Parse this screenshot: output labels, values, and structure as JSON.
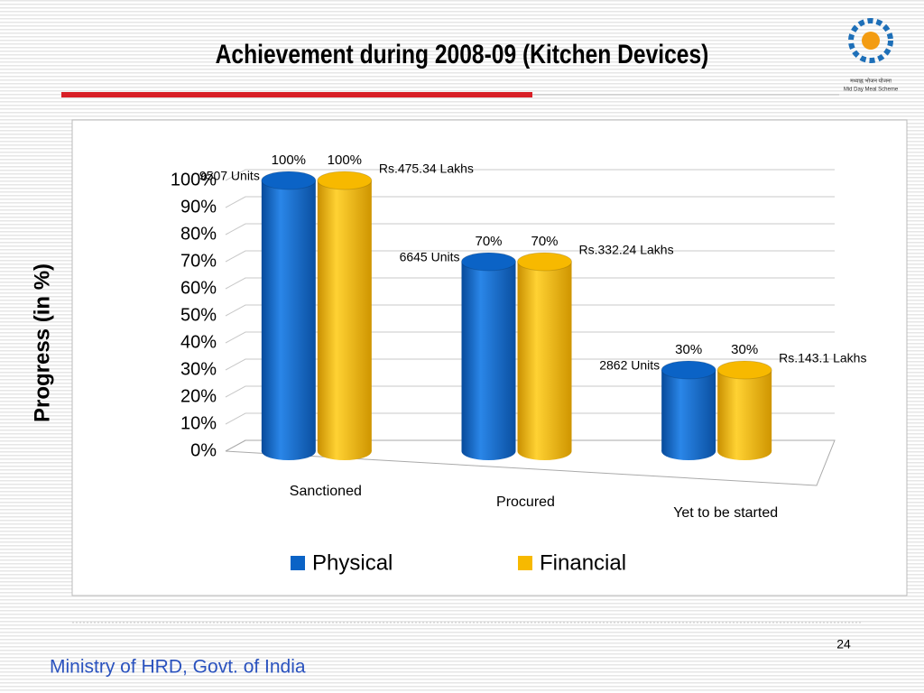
{
  "chart_data": {
    "type": "bar3d",
    "title": "Achievement during 2008-09 (Kitchen Devices)",
    "y_label": "Progress (in %)",
    "categories": [
      "Sanctioned",
      "Procured",
      "Yet to be started"
    ],
    "series": [
      {
        "name": "Physical",
        "color": "#0b63c6",
        "values": [
          100,
          70,
          30
        ],
        "value_labels": [
          "100%",
          "70%",
          "30%"
        ],
        "notes": [
          "9507 Units",
          "6645 Units",
          "2862 Units"
        ]
      },
      {
        "name": "Financial",
        "color": "#f7b900",
        "values": [
          100,
          70,
          30
        ],
        "value_labels": [
          "100%",
          "70%",
          "30%"
        ],
        "notes": [
          "Rs.475.34 Lakhs",
          "Rs.332.24 Lakhs",
          "Rs.143.1 Lakhs"
        ]
      }
    ],
    "ylim": [
      0,
      100
    ],
    "yticks": [
      {
        "value": 0,
        "label": "0%"
      },
      {
        "value": 10,
        "label": "10%"
      },
      {
        "value": 20,
        "label": "20%"
      },
      {
        "value": 30,
        "label": "30%"
      },
      {
        "value": 40,
        "label": "40%"
      },
      {
        "value": 50,
        "label": "50%"
      },
      {
        "value": 60,
        "label": "60%"
      },
      {
        "value": 70,
        "label": "70%"
      },
      {
        "value": 80,
        "label": "80%"
      },
      {
        "value": 90,
        "label": "90%"
      },
      {
        "value": 100,
        "label": "100%"
      }
    ],
    "grid": true,
    "legend": "bottom"
  },
  "logo": {
    "hindi": "मध्याह्न भोजन योजना",
    "english": "Mid Day Meal Scheme"
  },
  "footer": {
    "text": "Ministry of HRD, Govt. of India",
    "page": "24"
  }
}
